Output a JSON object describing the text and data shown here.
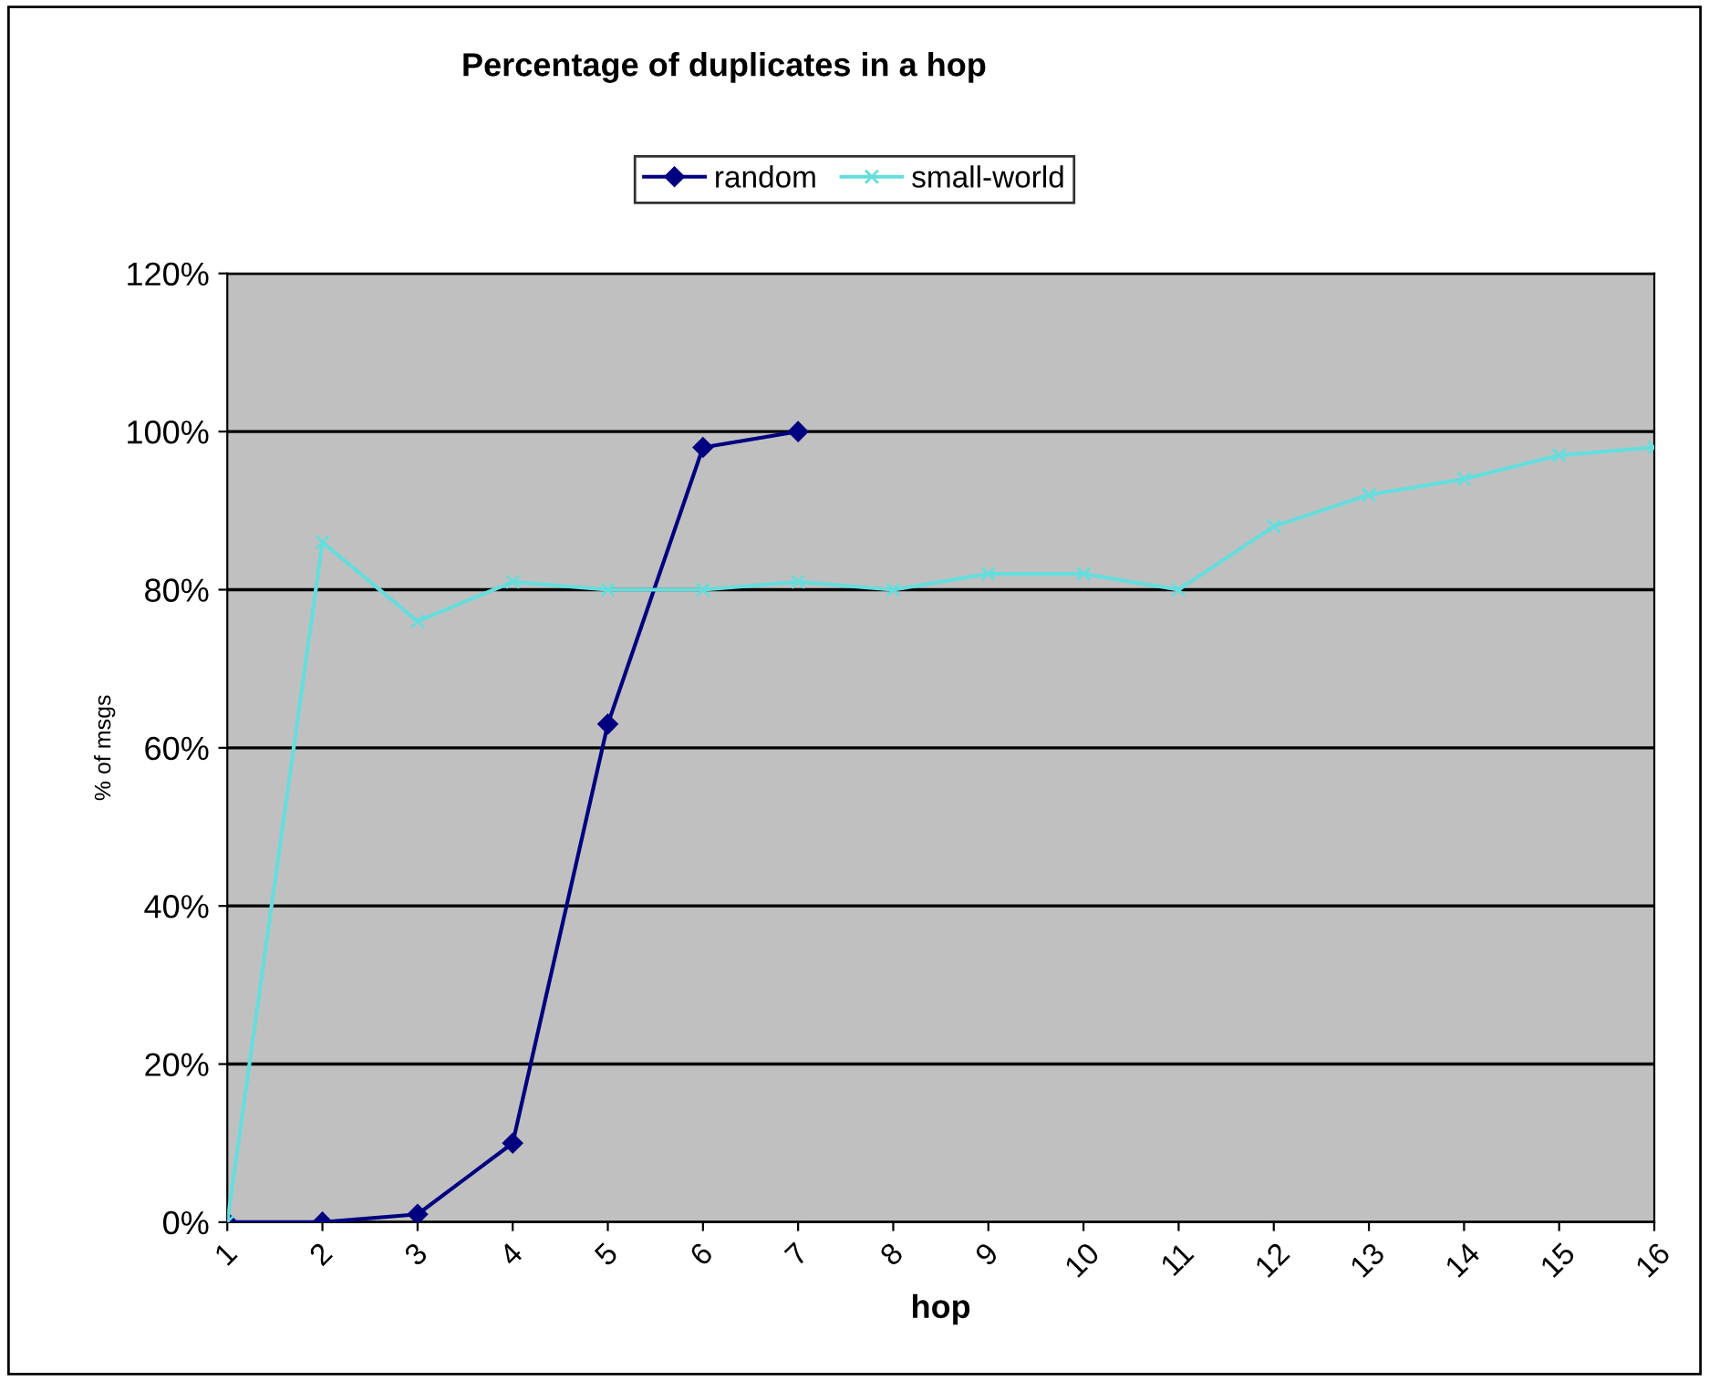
{
  "chart_data": {
    "type": "line",
    "title": "Percentage of duplicates in a hop",
    "xlabel": "hop",
    "ylabel": "% of msgs",
    "categories": [
      "1",
      "2",
      "3",
      "4",
      "5",
      "6",
      "7",
      "8",
      "9",
      "10",
      "11",
      "12",
      "13",
      "14",
      "15",
      "16"
    ],
    "series": [
      {
        "name": "random",
        "color": "#000080",
        "marker": "diamond",
        "values": [
          0,
          0,
          1,
          10,
          63,
          98,
          100,
          null,
          null,
          null,
          null,
          null,
          null,
          null,
          null,
          null
        ]
      },
      {
        "name": "small-world",
        "color": "#66dddd",
        "marker": "cross",
        "values": [
          0,
          86,
          76,
          81,
          80,
          80,
          81,
          80,
          82,
          82,
          80,
          88,
          92,
          94,
          97,
          98
        ]
      }
    ],
    "ylim": [
      0,
      120
    ],
    "yticks": [
      {
        "value": 0,
        "label": "0%"
      },
      {
        "value": 20,
        "label": "20%"
      },
      {
        "value": 40,
        "label": "40%"
      },
      {
        "value": 60,
        "label": "60%"
      },
      {
        "value": 80,
        "label": "80%"
      },
      {
        "value": 100,
        "label": "100%"
      },
      {
        "value": 120,
        "label": "120%"
      }
    ],
    "grid": "y",
    "legend": "top"
  }
}
